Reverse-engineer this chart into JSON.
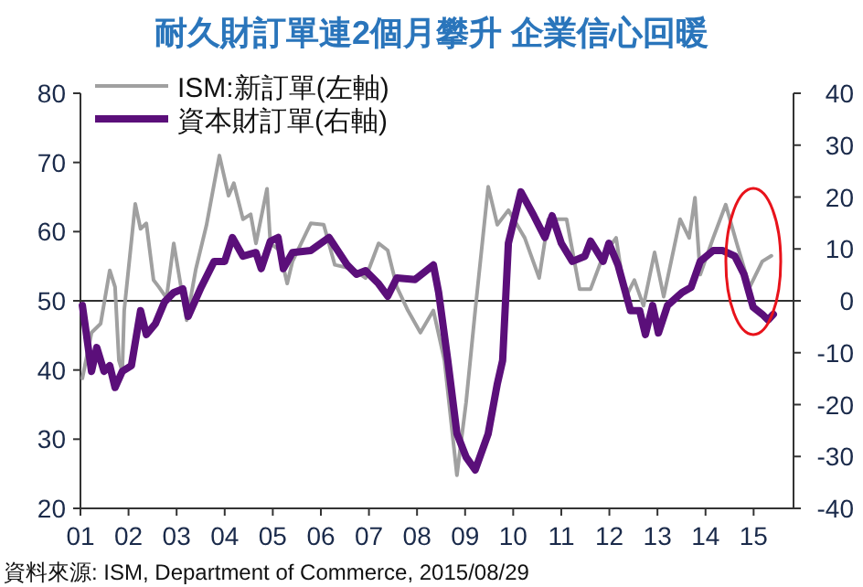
{
  "chart_data": {
    "type": "line",
    "title": "耐久財訂單連2個月攀升  企業信心回暖",
    "x": [
      2001.04,
      2001.23,
      2001.42,
      2001.61,
      2001.72,
      2001.8,
      2001.87,
      2001.91,
      2002.14,
      2002.25,
      2002.37,
      2002.52,
      2002.63,
      2002.79,
      2002.94,
      2003.13,
      2003.21,
      2003.4,
      2003.62,
      2003.89,
      2004.08,
      2004.19,
      2004.38,
      2004.54,
      2004.65,
      2004.88,
      2004.95,
      2005.14,
      2005.3,
      2005.41,
      2005.79,
      2006.06,
      2006.29,
      2006.67,
      2006.93,
      2007.2,
      2007.39,
      2007.58,
      2007.81,
      2008.07,
      2008.34,
      2008.57,
      2008.83,
      2009.02,
      2009.21,
      2009.48,
      2009.67,
      2009.9,
      2010.24,
      2010.54,
      2010.73,
      2011.11,
      2011.38,
      2011.61,
      2011.87,
      2012.14,
      2012.33,
      2012.52,
      2012.71,
      2012.94,
      2013.13,
      2013.47,
      2013.66,
      2013.78,
      2013.89,
      2014.16,
      2014.42,
      2014.65,
      2014.92,
      2015.18,
      2015.37
    ],
    "series": [
      {
        "name": "ISM:新訂單(左軸)",
        "color": "#a0a0a0",
        "axis": "y",
        "values": [
          38.8,
          45.4,
          46.7,
          54.4,
          52,
          41.4,
          39.8,
          48.6,
          64,
          60.4,
          61.2,
          53,
          52,
          50.4,
          58.3,
          50.4,
          47.2,
          54.6,
          60.9,
          71,
          65.2,
          67,
          61.8,
          62.5,
          58.3,
          66.2,
          58.3,
          57.3,
          52.5,
          55.7,
          61.2,
          61,
          55.2,
          54.6,
          53.3,
          58.3,
          57.3,
          52,
          48.6,
          45.4,
          48.6,
          41.4,
          24.8,
          35.3,
          48.6,
          66.5,
          61,
          63.1,
          59.1,
          53.3,
          61.8,
          61.8,
          51.7,
          51.7,
          56.5,
          59.1,
          50.4,
          53,
          49.3,
          57,
          50.6,
          61.8,
          59.1,
          64.9,
          53.8,
          59.1,
          63.9,
          58.3,
          52,
          55.7,
          56.5
        ]
      },
      {
        "name": "資本財訂單(右軸)",
        "color": "#5b0f7a",
        "axis": "y2",
        "x": [
          2001.04,
          2001.11,
          2001.23,
          2001.34,
          2001.49,
          2001.61,
          2001.72,
          2001.87,
          2002.06,
          2002.25,
          2002.37,
          2002.56,
          2002.75,
          2002.94,
          2003.13,
          2003.24,
          2003.51,
          2003.78,
          2004.0,
          2004.16,
          2004.38,
          2004.65,
          2004.76,
          2004.95,
          2005.11,
          2005.22,
          2005.41,
          2005.79,
          2006.17,
          2006.55,
          2006.74,
          2006.93,
          2007.2,
          2007.39,
          2007.58,
          2007.96,
          2008.34,
          2008.45,
          2008.64,
          2008.83,
          2009.02,
          2009.21,
          2009.48,
          2009.67,
          2009.78,
          2009.9,
          2010.16,
          2010.43,
          2010.66,
          2010.81,
          2011.0,
          2011.23,
          2011.49,
          2011.61,
          2011.87,
          2011.99,
          2012.18,
          2012.44,
          2012.63,
          2012.75,
          2012.9,
          2013.02,
          2013.21,
          2013.51,
          2013.7,
          2013.89,
          2014.16,
          2014.35,
          2014.61,
          2014.8,
          2014.99,
          2015.18,
          2015.3,
          2015.41
        ],
        "values": [
          -0.9,
          -5.5,
          -13.6,
          -9,
          -13.6,
          -12.5,
          -16.7,
          -13.6,
          -12.5,
          -1.9,
          -6.5,
          -4.4,
          -0.2,
          1.6,
          2.3,
          -3,
          2.6,
          7.6,
          7.6,
          12.2,
          8.6,
          9.3,
          6.2,
          11.5,
          12.2,
          6.2,
          9.3,
          9.7,
          12.2,
          6.9,
          5.1,
          5.8,
          3.3,
          0.9,
          4.4,
          4.1,
          6.9,
          1.6,
          -11.5,
          -25.6,
          -30.1,
          -32.6,
          -25.6,
          -16,
          -11.5,
          11.1,
          21,
          16.4,
          12.2,
          16.4,
          11.1,
          7.6,
          8.6,
          11.5,
          7.6,
          11.1,
          6.9,
          -1.9,
          -1.9,
          -6.5,
          -0.9,
          -6.2,
          -0.9,
          1.6,
          2.6,
          7.6,
          9.7,
          9.7,
          8.6,
          5.1,
          -1.2,
          -2.6,
          -3.7,
          -2.6
        ]
      }
    ],
    "xlim": [
      2001,
      2015.83
    ],
    "xticks": [
      {
        "value": 2001,
        "label": "01"
      },
      {
        "value": 2002,
        "label": "02"
      },
      {
        "value": 2003,
        "label": "03"
      },
      {
        "value": 2004,
        "label": "04"
      },
      {
        "value": 2005,
        "label": "05"
      },
      {
        "value": 2006,
        "label": "06"
      },
      {
        "value": 2007,
        "label": "07"
      },
      {
        "value": 2008,
        "label": "08"
      },
      {
        "value": 2009,
        "label": "09"
      },
      {
        "value": 2010,
        "label": "10"
      },
      {
        "value": 2011,
        "label": "11"
      },
      {
        "value": 2012,
        "label": "12"
      },
      {
        "value": 2013,
        "label": "13"
      },
      {
        "value": 2014,
        "label": "14"
      },
      {
        "value": 2015,
        "label": "15"
      }
    ],
    "ylim": [
      20,
      80
    ],
    "yticks": [
      20,
      30,
      40,
      50,
      60,
      70,
      80
    ],
    "y2lim": [
      -40,
      40
    ],
    "y2ticks": [
      -40,
      -30,
      -20,
      -10,
      0,
      10,
      20,
      30,
      40
    ],
    "ref_lines": [
      {
        "axis": "y",
        "value": 50,
        "color": "#303030"
      }
    ],
    "legend": "top left",
    "grid": false,
    "marker": "none",
    "line_style": "solid",
    "annotations": [
      "資料來源: ISM, Department of Commerce, 2015/08/29"
    ]
  }
}
